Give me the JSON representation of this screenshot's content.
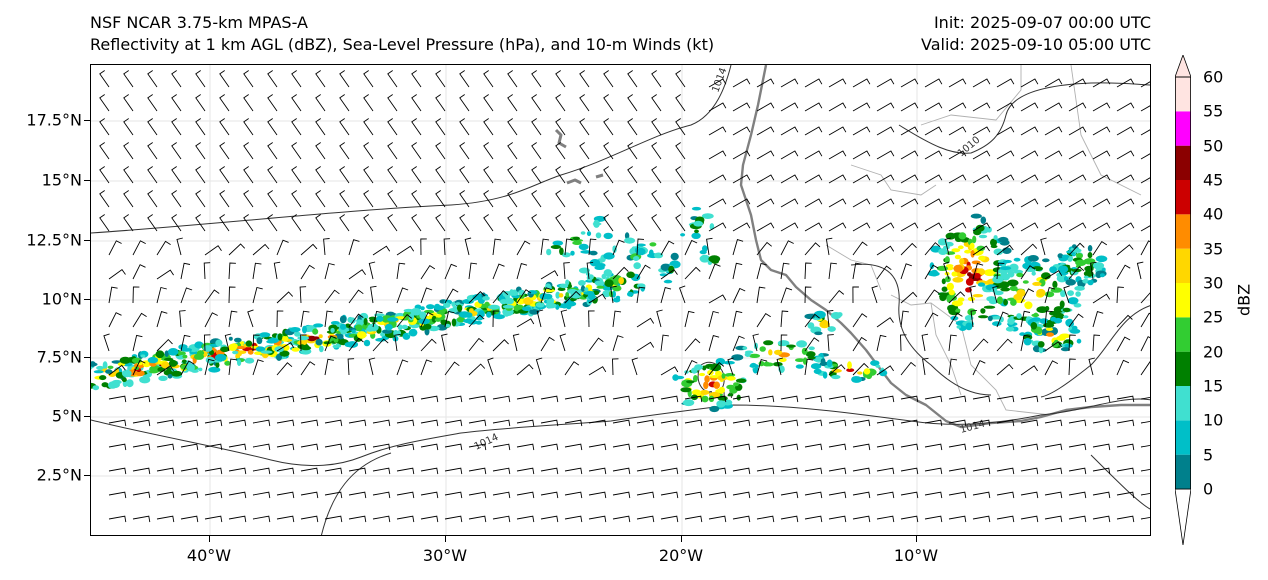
{
  "header": {
    "model": "NSF NCAR 3.75-km MPAS-A",
    "fields": "Reflectivity at 1 km AGL (dBZ), Sea-Level Pressure (hPa), and 10-m Winds (kt)",
    "init": "Init: 2025-09-07 00:00 UTC",
    "valid": "Valid: 2025-09-10 05:00 UTC"
  },
  "axes": {
    "lat_labels": [
      "17.5°N",
      "15°N",
      "12.5°N",
      "10°N",
      "7.5°N",
      "5°N",
      "2.5°N"
    ],
    "lon_labels": [
      "40°W",
      "30°W",
      "20°W",
      "10°W"
    ]
  },
  "isobar_labels": [
    "1014",
    "1014",
    "1014",
    "1010",
    "1014"
  ],
  "colorbar": {
    "title": "dBZ",
    "labels": [
      "0",
      "5",
      "10",
      "15",
      "20",
      "25",
      "30",
      "35",
      "40",
      "45",
      "50",
      "55",
      "60"
    ],
    "colors": [
      "#ffffff",
      "#00808c",
      "#00bfc8",
      "#40e0d0",
      "#008000",
      "#32cd32",
      "#ffff00",
      "#ffd700",
      "#ff8c00",
      "#cc0000",
      "#8b0000",
      "#ff00ff",
      "#ffe4e1"
    ]
  },
  "layers": {
    "wind_barbs": "10-m wind barbs",
    "coastline_color": "#808080",
    "isobar_color": "#333333"
  }
}
